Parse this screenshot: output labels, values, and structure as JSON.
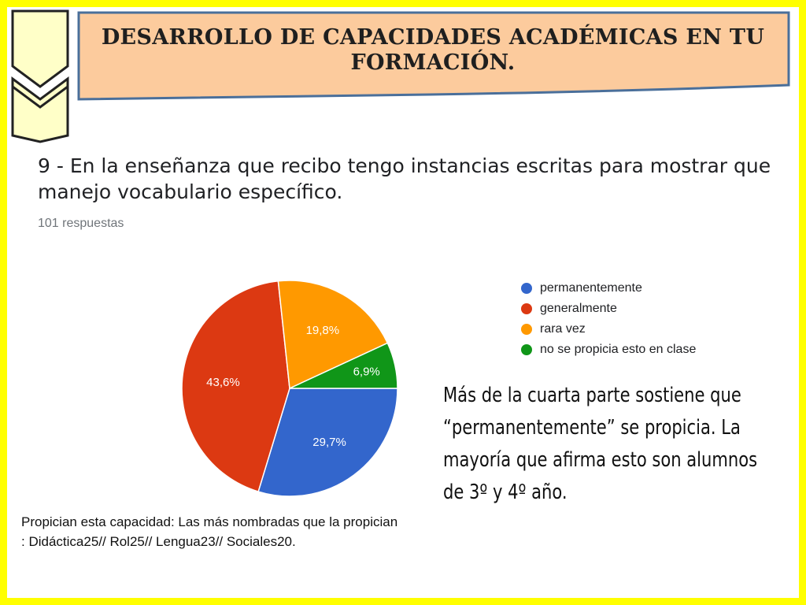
{
  "slide": {
    "title": "DESARROLLO DE CAPACIDADES ACADÉMICAS EN TU FORMACIÓN.",
    "question": "9 - En la enseñanza que recibo tengo instancias escritas para mostrar que manejo vocabulario específico.",
    "responses": "101 respuestas",
    "comment": "Más de la cuarta parte sostiene que “permanentemente” se propicia. La mayoría que afirma esto son alumnos de 3º y 4º año.",
    "footnote": "Propician esta capacidad: Las más nombradas que la propician : Didáctica25// Rol25// Lengua23// Sociales20."
  },
  "colors": {
    "frame": "#ffff00",
    "banner_fill": "#fccb9d",
    "banner_stroke": "#4a6f9a",
    "chevron_fill": "#ffffc8"
  },
  "chart_data": {
    "type": "pie",
    "title": "",
    "legend_position": "right",
    "categories": [
      "permanentemente",
      "generalmente",
      "rara vez",
      "no se propicia esto en clase"
    ],
    "values": [
      29.7,
      43.6,
      19.8,
      6.9
    ],
    "labels": [
      "29,7%",
      "43,6%",
      "19,8%",
      "6,9%"
    ],
    "colors": [
      "#3366cc",
      "#dc3912",
      "#ff9900",
      "#109618"
    ]
  }
}
